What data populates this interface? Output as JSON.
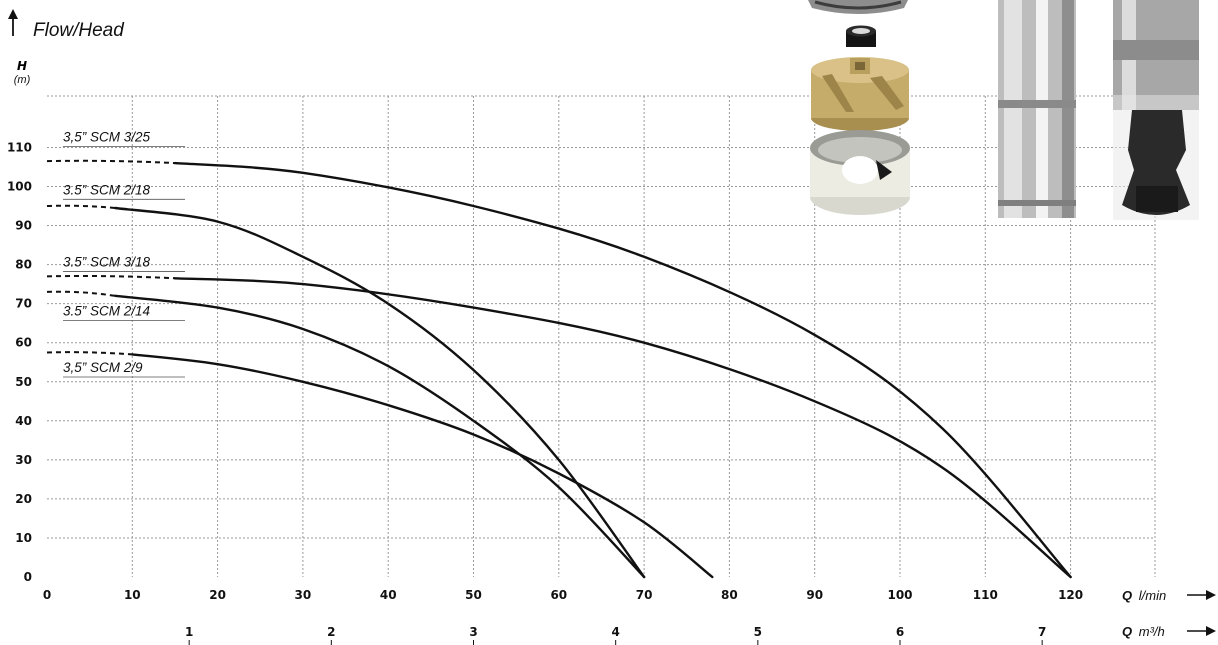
{
  "chart_data": {
    "type": "line",
    "title": "Flow/Head",
    "ylabel": "H",
    "yunit": "(m)",
    "xlabel_primary": "Q",
    "xunit_primary": "l/min",
    "xlabel_secondary": "Q",
    "xunit_secondary": "m³/h",
    "xlim": [
      0,
      130
    ],
    "ylim": [
      0,
      120
    ],
    "xticks": [
      0,
      10,
      20,
      30,
      40,
      50,
      60,
      70,
      80,
      90,
      100,
      110,
      120
    ],
    "yticks": [
      0,
      10,
      20,
      30,
      40,
      50,
      60,
      70,
      80,
      90,
      100,
      110
    ],
    "x2ticks": [
      1,
      2,
      3,
      4,
      5,
      6,
      7
    ],
    "grid": true,
    "series": [
      {
        "name": "3,5” SCM 3/25",
        "x": [
          15,
          30,
          50,
          70,
          90,
          105,
          120
        ],
        "y": [
          106,
          103.5,
          95,
          82,
          62,
          38,
          0
        ],
        "x_dashed_to": 15,
        "y_start": 106.5
      },
      {
        "name": "3.5” SCM 2/18",
        "x": [
          8,
          20,
          30,
          40,
          50,
          60,
          70
        ],
        "y": [
          94.5,
          91,
          82,
          70,
          53,
          30,
          0
        ],
        "x_dashed_to": 8,
        "y_start": 95
      },
      {
        "name": "3.5” SCM 3/18",
        "x": [
          15,
          30,
          50,
          70,
          90,
          105,
          120
        ],
        "y": [
          76.5,
          75,
          69,
          60,
          45,
          28,
          0
        ],
        "x_dashed_to": 15,
        "y_start": 77
      },
      {
        "name": "3.5” SCM 2/14",
        "x": [
          8,
          20,
          30,
          40,
          50,
          60,
          70
        ],
        "y": [
          72,
          69,
          63.5,
          54,
          40,
          23,
          0
        ],
        "x_dashed_to": 8,
        "y_start": 73
      },
      {
        "name": "3,5” SCM 2/9",
        "x": [
          10,
          20,
          30,
          40,
          50,
          60,
          70,
          78
        ],
        "y": [
          57,
          54.5,
          50,
          44,
          36.5,
          26.5,
          14,
          0
        ],
        "x_dashed_to": 10,
        "y_start": 57.5
      }
    ],
    "label_anchor_y": [
      111.5,
      98,
      79.5,
      67,
      52.5
    ]
  }
}
